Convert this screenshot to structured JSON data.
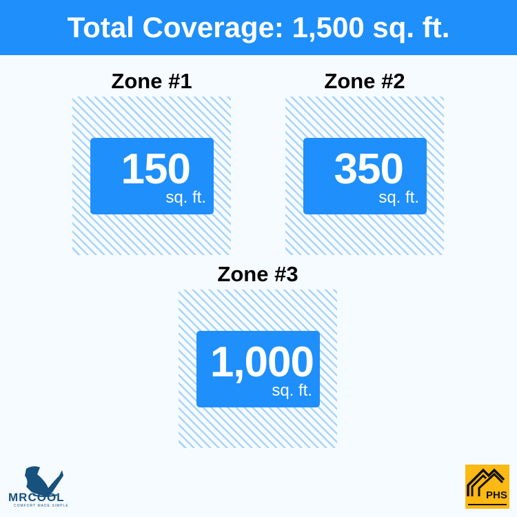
{
  "title": "Total Coverage: 1,500 sq. ft.",
  "zones": [
    {
      "label": "Zone #1",
      "value": "150",
      "unit": "sq. ft."
    },
    {
      "label": "Zone #2",
      "value": "350",
      "unit": "sq. ft."
    },
    {
      "label": "Zone #3",
      "value": "1,000",
      "unit": "sq. ft."
    }
  ],
  "logos": {
    "left": "MRCOOL",
    "left_tagline": "COMFORT MADE SIMPLE",
    "right": "PHS"
  },
  "colors": {
    "accent": "#1e8ffb",
    "hatch": "#a9d4fb",
    "logo_yellow": "#fcb813",
    "logo_navy": "#17517e"
  }
}
